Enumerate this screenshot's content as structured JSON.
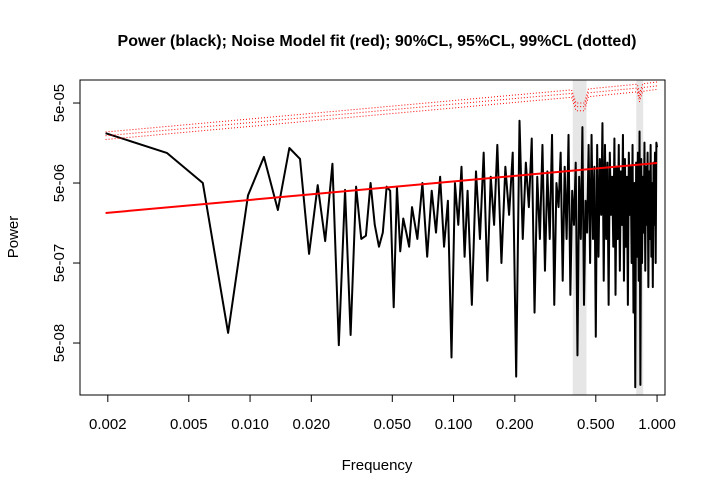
{
  "chart_data": {
    "type": "line",
    "title": "Power (black); Noise Model fit (red); 90%CL, 95%CL, 99%CL (dotted)",
    "xlabel": "Frequency",
    "ylabel": "Power",
    "xscale": "log",
    "yscale": "log",
    "xlim": [
      0.00146,
      1.094
    ],
    "ylim": [
      1.12e-08,
      9.7e-05
    ],
    "xticks": [
      0.002,
      0.005,
      {
        "value": 0.01,
        "label": "0.010"
      },
      {
        "value": 0.02,
        "label": "0.020"
      },
      {
        "value": 0.05,
        "label": "0.050"
      },
      {
        "value": 0.1,
        "label": "0.100"
      },
      {
        "value": 0.2,
        "label": "0.200"
      },
      {
        "value": 0.5,
        "label": "0.500"
      },
      {
        "value": 1,
        "label": "1.000"
      }
    ],
    "yticks": [
      {
        "value": 5e-05,
        "label": "5e-05"
      },
      {
        "value": 5e-06,
        "label": "5e-06"
      },
      {
        "value": 5e-07,
        "label": "5e-07"
      },
      {
        "value": 5e-08,
        "label": "5e-08"
      }
    ],
    "bands": [
      [
        0.385,
        0.45
      ],
      [
        0.79,
        0.855
      ]
    ],
    "band_color": "#e6e6e6",
    "series": [
      {
        "color": "#000000",
        "width": 2,
        "dotted": false,
        "x": [
          0.00195,
          0.0039,
          0.00586,
          0.0078,
          0.00977,
          0.0117,
          0.0137,
          0.0156,
          0.0176,
          0.0195,
          0.0215,
          0.0234,
          0.0254,
          0.0273,
          0.0293,
          0.0312,
          0.0332,
          0.0352,
          0.0371,
          0.0391,
          0.041,
          0.043,
          0.0449,
          0.0469,
          0.0488,
          0.0508,
          0.0527,
          0.0547,
          0.0566,
          0.0586,
          0.0605,
          0.0625,
          0.0664,
          0.0703,
          0.0742,
          0.0781,
          0.082,
          0.0859,
          0.0898,
          0.0938,
          0.0977,
          0.1016,
          0.1055,
          0.1094,
          0.1133,
          0.1172,
          0.123,
          0.1289,
          0.1348,
          0.1406,
          0.1465,
          0.1523,
          0.1582,
          0.1641,
          0.1719,
          0.1797,
          0.1875,
          0.1953,
          0.2031,
          0.2109,
          0.2188,
          0.2266,
          0.2344,
          0.2422,
          0.25,
          0.2578,
          0.2656,
          0.2734,
          0.2813,
          0.2891,
          0.2969,
          0.3047,
          0.3125,
          0.3203,
          0.3281,
          0.3359,
          0.3438,
          0.3516,
          0.3594,
          0.3672,
          0.375,
          0.3828,
          0.3906,
          0.3984,
          0.4063,
          0.4141,
          0.4219,
          0.4297,
          0.4375,
          0.4453,
          0.4531,
          0.4609,
          0.4688,
          0.4766,
          0.4844,
          0.4922,
          0.5,
          0.5078,
          0.5156,
          0.5234,
          0.5313,
          0.5391,
          0.5469,
          0.5547,
          0.5625,
          0.5703,
          0.5781,
          0.5859,
          0.5938,
          0.6016,
          0.6094,
          0.6172,
          0.625,
          0.6328,
          0.6406,
          0.6484,
          0.6563,
          0.6641,
          0.6719,
          0.6797,
          0.6875,
          0.6953,
          0.7031,
          0.7109,
          0.7188,
          0.7266,
          0.7344,
          0.7422,
          0.75,
          0.7578,
          0.7656,
          0.7734,
          0.7813,
          0.7891,
          0.7969,
          0.8047,
          0.8125,
          0.8203,
          0.8281,
          0.8359,
          0.8438,
          0.8516,
          0.8594,
          0.8672,
          0.875,
          0.8828,
          0.8906,
          0.8984,
          0.9063,
          0.9141,
          0.9219,
          0.9297,
          0.9375,
          0.9453,
          0.9531,
          0.9609,
          0.9688,
          0.9766,
          0.9844,
          0.9922,
          1.0
        ],
        "values": [
          2.1e-05,
          1.19e-05,
          5e-06,
          6.7e-08,
          3.5e-06,
          1.06e-05,
          2.3e-06,
          1.37e-05,
          1e-05,
          6.5e-07,
          4.7e-06,
          9.4e-07,
          8.7e-06,
          4.7e-08,
          4.1e-06,
          6.3e-08,
          4.5e-06,
          1e-06,
          1.1e-06,
          5e-06,
          1.5e-06,
          8e-07,
          1.2e-06,
          4.5e-06,
          4e-06,
          1.4e-07,
          4.5e-06,
          7e-07,
          1.8e-06,
          1.2e-06,
          8e-07,
          2.5e-06,
          1e-06,
          5e-06,
          6e-07,
          4e-06,
          1.2e-06,
          6e-06,
          8e-07,
          3e-06,
          3.3e-08,
          5e-06,
          1.5e-06,
          8e-06,
          6e-07,
          4e-06,
          1.5e-07,
          7e-06,
          1e-06,
          1.2e-05,
          3e-07,
          6e-06,
          1.5e-06,
          1.5e-05,
          5e-07,
          8e-06,
          2e-06,
          1.2e-05,
          1.9e-08,
          3e-05,
          1e-06,
          9e-06,
          2.5e-06,
          1.8e-05,
          1.2e-07,
          6e-06,
          1e-06,
          1.5e-05,
          4e-07,
          7e-06,
          1e-06,
          2e-05,
          1.5e-07,
          5e-06,
          2.5e-06,
          1.2e-05,
          3e-07,
          8e-06,
          1e-06,
          2e-05,
          2e-07,
          4e-06,
          1.5e-06,
          9e-06,
          3.5e-08,
          6e-06,
          1e-06,
          2.5e-05,
          1.5e-07,
          3e-06,
          1.2e-06,
          1.5e-05,
          5e-07,
          2e-05,
          1e-06,
          8e-06,
          6e-08,
          1.5e-05,
          6e-07,
          1e-05,
          2e-06,
          2.8e-05,
          3e-07,
          1.5e-05,
          1e-06,
          9e-06,
          1.5e-07,
          1.2e-05,
          2e-06,
          6e-06,
          8e-07,
          1.8e-05,
          2e-07,
          8e-06,
          1e-06,
          1.5e-05,
          4e-07,
          7e-06,
          1.5e-06,
          2e-05,
          3e-07,
          1e-05,
          8e-07,
          6e-06,
          1.5e-07,
          1.2e-05,
          2e-06,
          8e-06,
          5e-07,
          1.5e-05,
          1.2e-07,
          5e-06,
          1.4e-08,
          9e-06,
          6e-07,
          1.2e-05,
          3e-07,
          2.2e-05,
          1.5e-08,
          1e-05,
          5e-07,
          6e-06,
          1.2e-06,
          1.6e-05,
          4e-07,
          8e-06,
          1.5e-06,
          1.2e-05,
          2.5e-07,
          7e-06,
          1e-06,
          1.5e-05,
          6e-07,
          5e-06,
          2.5e-07,
          9e-06,
          1.5e-06,
          1.2e-05,
          5e-07,
          1.6e-05,
          1.4e-05
        ]
      },
      {
        "color": "#ff0000",
        "width": 2,
        "dotted": false,
        "x": [
          0.00195,
          1.0
        ],
        "values": [
          2.11e-06,
          8.9e-06
        ]
      },
      {
        "color": "#ff0000",
        "width": 1,
        "dotted": true,
        "x": [
          0.00195,
          0.38,
          0.4,
          0.44,
          0.46,
          0.8,
          0.82,
          0.85,
          1.0
        ],
        "values": [
          1.75e-05,
          5.9e-05,
          4e-05,
          4e-05,
          6e-05,
          6.9e-05,
          5.2e-05,
          7e-05,
          7.4e-05
        ]
      },
      {
        "color": "#ff0000",
        "width": 1,
        "dotted": true,
        "x": [
          0.00195,
          0.38,
          0.4,
          0.44,
          0.46,
          0.8,
          0.82,
          0.85,
          1.0
        ],
        "values": [
          1.95e-05,
          6.6e-05,
          4.5e-05,
          4.5e-05,
          6.7e-05,
          7.7e-05,
          5.8e-05,
          7.8e-05,
          8.2e-05
        ]
      },
      {
        "color": "#ff0000",
        "width": 1,
        "dotted": true,
        "x": [
          0.00195,
          0.38,
          0.4,
          0.44,
          0.46,
          0.8,
          0.82,
          0.85,
          1.0
        ],
        "values": [
          2.17e-05,
          7.3e-05,
          5e-05,
          5e-05,
          7.5e-05,
          8.6e-05,
          6.5e-05,
          8.7e-05,
          9.15e-05
        ]
      }
    ]
  }
}
